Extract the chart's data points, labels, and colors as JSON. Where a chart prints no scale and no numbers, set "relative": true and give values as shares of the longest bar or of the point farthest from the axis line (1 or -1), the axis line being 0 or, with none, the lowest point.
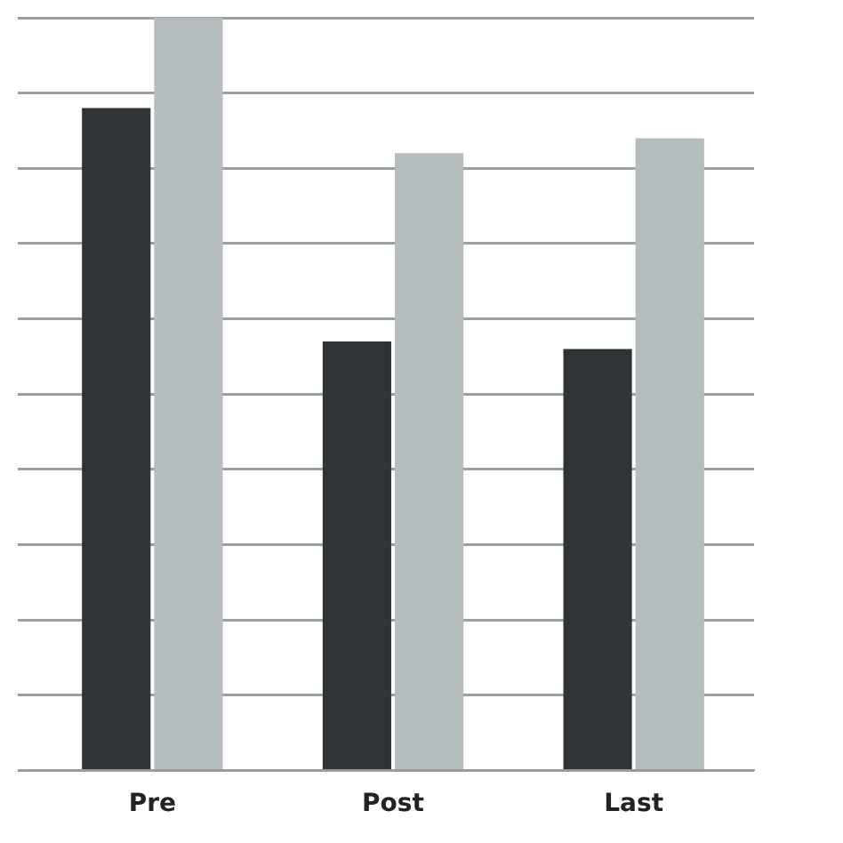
{
  "chart_data": {
    "type": "bar",
    "relative": true,
    "categories": [
      "Pre",
      "Post",
      "Last"
    ],
    "series": [
      {
        "color": "#2f3436",
        "values": [
          0.88,
          0.57,
          0.56
        ]
      },
      {
        "color": "#b4bcbd",
        "values": [
          1,
          0.82,
          0.84
        ]
      }
    ],
    "grid": "y"
  }
}
